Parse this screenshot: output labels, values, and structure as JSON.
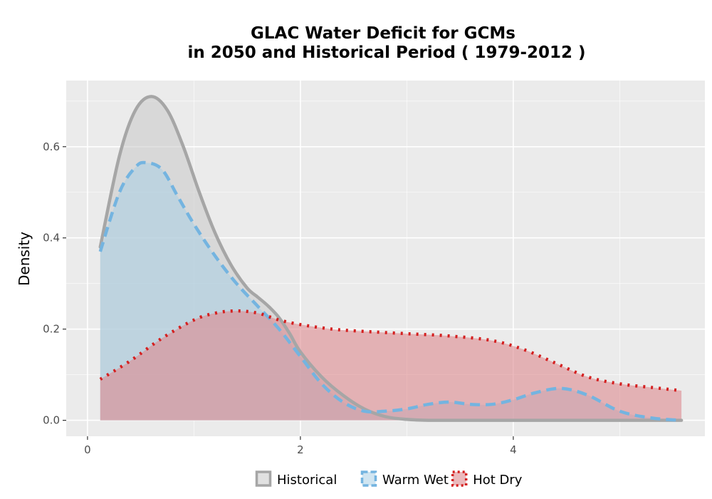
{
  "chart_data": {
    "type": "area",
    "title_lines": [
      "GLAC  Water Deficit for GCMs",
      "in 2050 and Historical Period ( 1979-2012 )"
    ],
    "xlabel": "",
    "ylabel": "Density",
    "xlim": [
      -0.2,
      5.8
    ],
    "ylim": [
      -0.035,
      0.745
    ],
    "x_ticks": [
      0,
      2,
      4
    ],
    "x_tick_labels": [
      "0",
      "2",
      "4"
    ],
    "y_ticks": [
      0.0,
      0.2,
      0.4,
      0.6
    ],
    "y_tick_labels": [
      "0.0",
      "0.2",
      "0.4",
      "0.6"
    ],
    "grid": true,
    "legend_position": "bottom",
    "series": [
      {
        "name": "Historical",
        "line_color": "#a6a6a6",
        "fill_color": "#c8c8c8",
        "fill_opacity": 0.55,
        "line_style": "solid",
        "x": [
          0.12,
          0.3,
          0.45,
          0.6,
          0.75,
          0.9,
          1.05,
          1.2,
          1.35,
          1.5,
          1.6,
          1.7,
          1.8,
          1.9,
          2.0,
          2.2,
          2.4,
          2.6,
          2.8,
          3.0,
          3.2,
          3.5,
          4.0,
          4.5,
          5.0,
          5.58
        ],
        "y": [
          0.38,
          0.58,
          0.68,
          0.71,
          0.68,
          0.6,
          0.5,
          0.41,
          0.34,
          0.29,
          0.27,
          0.25,
          0.225,
          0.19,
          0.15,
          0.095,
          0.055,
          0.025,
          0.008,
          0.002,
          0.0,
          0.0,
          0.0,
          0.0,
          0.0,
          0.0
        ]
      },
      {
        "name": "Warm Wet",
        "line_color": "#74b4e0",
        "fill_color": "#a9cfe6",
        "fill_opacity": 0.55,
        "line_style": "dashed",
        "x": [
          0.12,
          0.3,
          0.45,
          0.55,
          0.7,
          0.85,
          1.0,
          1.2,
          1.4,
          1.6,
          1.8,
          2.0,
          2.2,
          2.4,
          2.6,
          2.8,
          3.0,
          3.2,
          3.4,
          3.6,
          3.8,
          4.0,
          4.2,
          4.45,
          4.7,
          5.0,
          5.3,
          5.58
        ],
        "y": [
          0.37,
          0.5,
          0.555,
          0.565,
          0.55,
          0.49,
          0.43,
          0.36,
          0.3,
          0.25,
          0.2,
          0.14,
          0.08,
          0.04,
          0.02,
          0.02,
          0.025,
          0.035,
          0.04,
          0.035,
          0.035,
          0.045,
          0.06,
          0.07,
          0.055,
          0.02,
          0.005,
          0.0
        ]
      },
      {
        "name": "Hot Dry",
        "line_color": "#d42020",
        "fill_color": "#de8a8f",
        "fill_opacity": 0.6,
        "line_style": "dotted",
        "x": [
          0.12,
          0.4,
          0.7,
          1.0,
          1.2,
          1.4,
          1.6,
          1.8,
          2.0,
          2.3,
          2.6,
          3.0,
          3.4,
          3.8,
          4.1,
          4.4,
          4.7,
          5.0,
          5.3,
          5.58
        ],
        "y": [
          0.09,
          0.13,
          0.18,
          0.22,
          0.235,
          0.24,
          0.235,
          0.22,
          0.21,
          0.2,
          0.195,
          0.19,
          0.185,
          0.175,
          0.155,
          0.125,
          0.095,
          0.08,
          0.072,
          0.065
        ]
      }
    ]
  }
}
